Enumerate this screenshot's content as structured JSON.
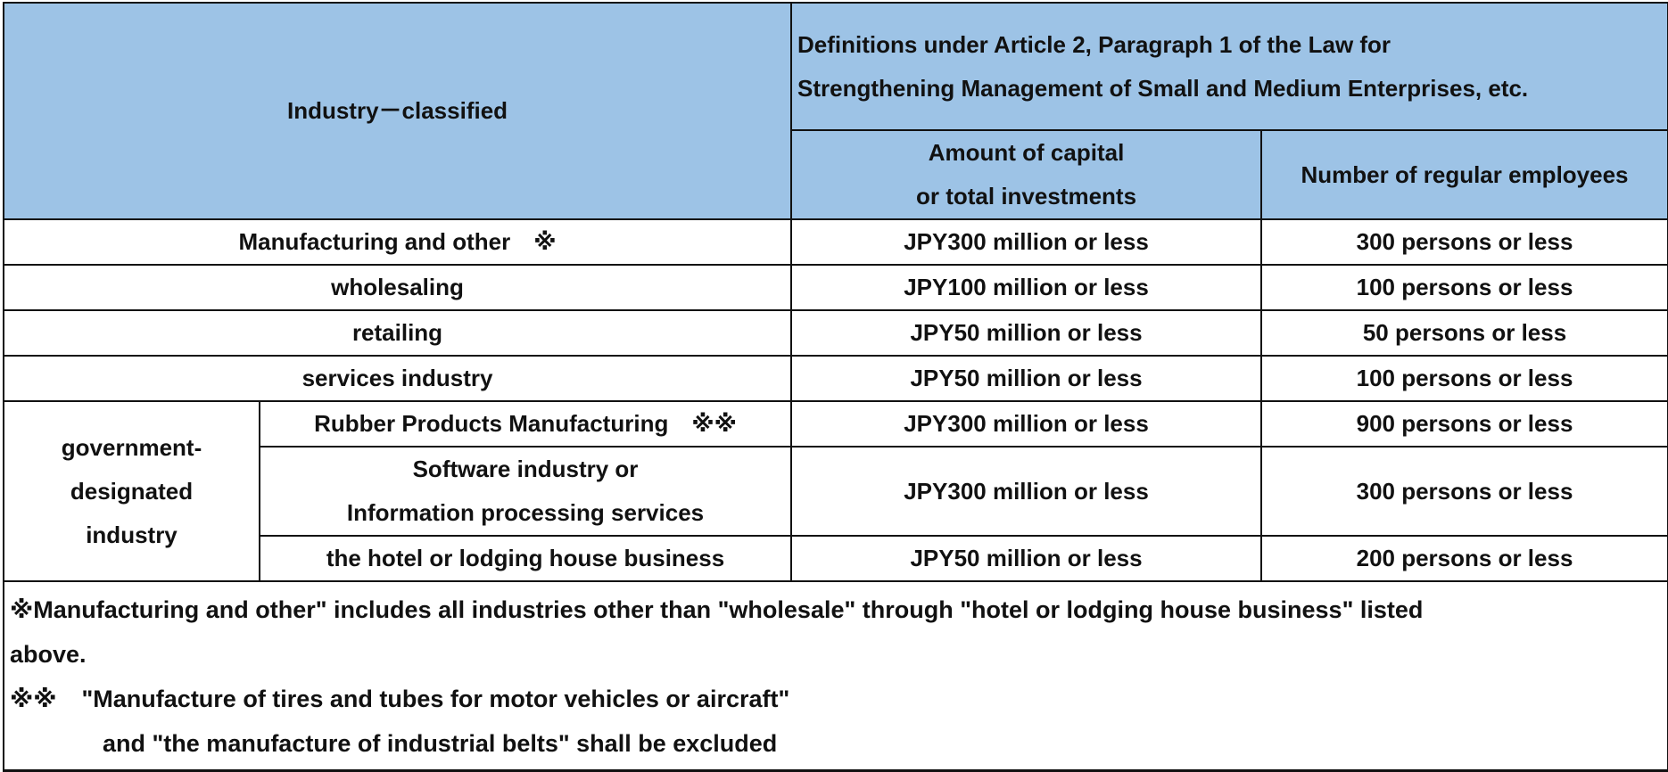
{
  "header": {
    "industry_classified": "Industry－classified",
    "definitions_line1": "Definitions under Article 2, Paragraph 1 of the Law for",
    "definitions_line2": "Strengthening Management of Small and Medium Enterprises, etc.",
    "capital_line1": "Amount of capital",
    "capital_line2": "or total investments",
    "employees": "Number of regular employees"
  },
  "rows": [
    {
      "industry": "Manufacturing and other",
      "mark": "※",
      "capital": "JPY300 million or less",
      "employees": "300 persons or less"
    },
    {
      "industry": "wholesaling",
      "capital": "JPY100 million or less",
      "employees": "100 persons or less"
    },
    {
      "industry": "retailing",
      "capital": "JPY50 million or less",
      "employees": "50 persons or less"
    },
    {
      "industry": "services industry",
      "capital": "JPY50 million or less",
      "employees": "100 persons or less"
    }
  ],
  "gov_designated": {
    "label_line1": "government-",
    "label_line2": "designated",
    "label_line3": "industry",
    "rows": [
      {
        "industry": "Rubber Products Manufacturing",
        "mark": "※※",
        "capital": "JPY300 million or less",
        "employees": "900 persons or less"
      },
      {
        "industry_line1": "Software industry or",
        "industry_line2": "Information processing services",
        "capital": "JPY300 million or less",
        "employees": "300 persons or less"
      },
      {
        "industry": "the hotel or lodging house business",
        "capital": "JPY50 million or less",
        "employees": "200 persons or less"
      }
    ]
  },
  "notes": {
    "note1_line1": "※Manufacturing and other\" includes all industries other than \"wholesale\" through \"hotel or lodging house business\" listed",
    "note1_line2": "above.",
    "note2_mark": "※※",
    "note2_line1": "\"Manufacture of tires and tubes for motor vehicles or aircraft\"",
    "note2_line2": "and \"the manufacture of industrial belts\" shall be excluded"
  },
  "colors": {
    "header_bg": "#9dc3e6",
    "border": "#111111",
    "body_bg": "#ffffff"
  }
}
